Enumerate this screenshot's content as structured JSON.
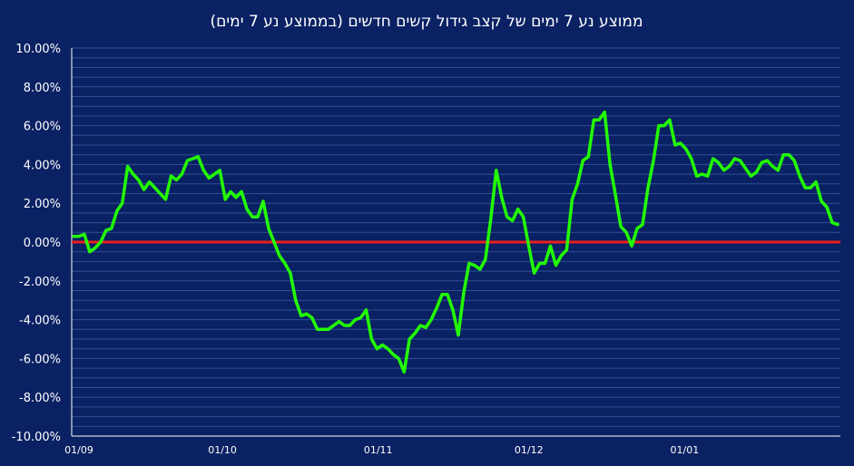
{
  "chart_data": {
    "type": "line",
    "title": "ממוצע נע 7 ימים של קצב גידול קשים חדשים  (בממוצע נע 7 ימים)",
    "xlabel": "",
    "ylabel": "",
    "x_tick_labels": [
      "01/09",
      "01/10",
      "01/11",
      "01/12",
      "01/01"
    ],
    "y_tick_labels": [
      "10.00%",
      "8.00%",
      "6.00%",
      "4.00%",
      "2.00%",
      "0.00%",
      "-2.00%",
      "-4.00%",
      "-6.00%",
      "-8.00%",
      "-10.00%"
    ],
    "ylim": [
      -10,
      10
    ],
    "x_range_days": [
      0,
      153
    ],
    "grid": true,
    "legend": "none",
    "colors": {
      "background": "#0a2163",
      "grid": "#2f4f95",
      "series": "#22ff00",
      "zero_line": "#e8201f",
      "axis": "#ffffff"
    },
    "series": [
      {
        "values_percent": [
          0.3,
          0.3,
          0.4,
          -0.5,
          -0.3,
          0.0,
          0.6,
          0.7,
          1.6,
          2.0,
          3.9,
          3.5,
          3.2,
          2.7,
          3.1,
          2.8,
          2.5,
          2.2,
          3.4,
          3.2,
          3.5,
          4.2,
          4.3,
          4.4,
          3.7,
          3.3,
          3.5,
          3.7,
          2.2,
          2.6,
          2.3,
          2.6,
          1.7,
          1.3,
          1.3,
          2.1,
          0.7,
          0.0,
          -0.7,
          -1.1,
          -1.6,
          -3.0,
          -3.8,
          -3.7,
          -3.9,
          -4.5,
          -4.5,
          -4.5,
          -4.3,
          -4.1,
          -4.3,
          -4.3,
          -4.0,
          -3.9,
          -3.5,
          -5.0,
          -5.5,
          -5.3,
          -5.5,
          -5.8,
          -6.0,
          -6.7,
          -5.0,
          -4.7,
          -4.3,
          -4.4,
          -4.0,
          -3.4,
          -2.7,
          -2.7,
          -3.5,
          -4.8,
          -2.6,
          -1.1,
          -1.2,
          -1.4,
          -0.9,
          1.2,
          3.7,
          2.3,
          1.3,
          1.1,
          1.7,
          1.3,
          -0.2,
          -1.6,
          -1.1,
          -1.1,
          -0.2,
          -1.2,
          -0.7,
          -0.4,
          2.2,
          3.0,
          4.2,
          4.4,
          6.3,
          6.3,
          6.7,
          4.0,
          2.4,
          0.8,
          0.5,
          -0.2,
          0.7,
          0.9,
          2.8,
          4.2,
          6.0,
          6.0,
          6.3,
          5.0,
          5.1,
          4.8,
          4.3,
          3.4,
          3.5,
          3.4,
          4.3,
          4.1,
          3.7,
          3.9,
          4.3,
          4.2,
          3.8,
          3.4,
          3.6,
          4.1,
          4.2,
          3.9,
          3.7,
          4.5,
          4.5,
          4.2,
          3.4,
          2.8,
          2.8,
          3.1,
          2.1,
          1.8,
          1.0,
          0.9
        ]
      }
    ]
  }
}
